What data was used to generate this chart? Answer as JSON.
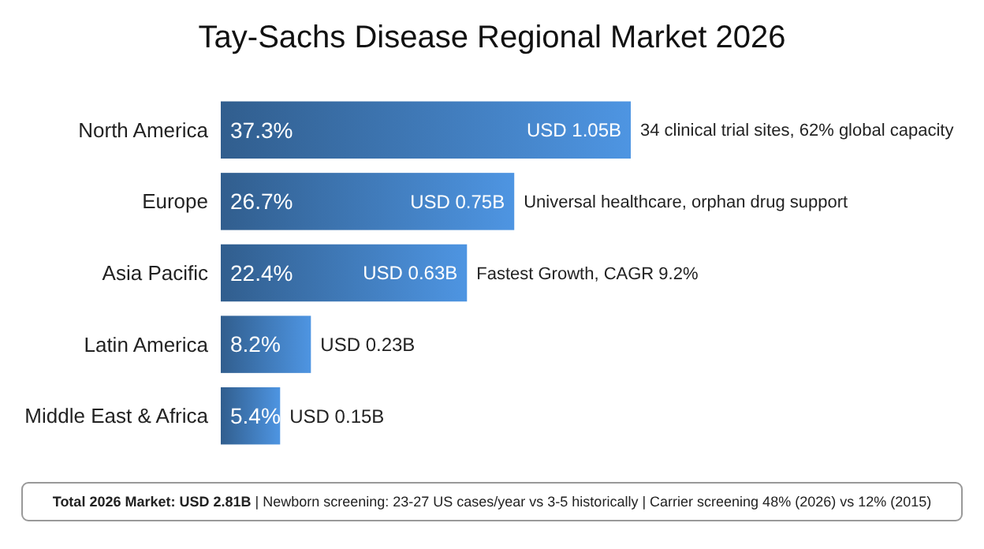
{
  "chart_data": {
    "type": "bar",
    "orientation": "horizontal",
    "title": "Tay-Sachs Disease Regional Market 2026",
    "categories": [
      "North America",
      "Europe",
      "Asia Pacific",
      "Latin America",
      "Middle East & Africa"
    ],
    "values": [
      37.3,
      26.7,
      22.4,
      8.2,
      5.4
    ],
    "value_labels": [
      "37.3%",
      "26.7%",
      "22.4%",
      "8.2%",
      "5.4%"
    ],
    "color": "#3d74b0",
    "annotations": [
      {
        "text": "USD 1.05B",
        "x": 37.3,
        "y": "North America"
      },
      {
        "text": "34 clinical trial sites, 62% global capacity",
        "x": 37.3,
        "y": "North America"
      },
      {
        "text": "USD 0.75B",
        "x": 26.7,
        "y": "Europe"
      },
      {
        "text": "Universal healthcare, orphan drug support",
        "x": 26.7,
        "y": "Europe"
      },
      {
        "text": "USD 0.63B",
        "x": 22.4,
        "y": "Asia Pacific"
      },
      {
        "text": "Fastest Growth, CAGR 9.2%",
        "x": 22.4,
        "y": "Asia Pacific"
      },
      {
        "text": "USD 0.23B",
        "x": 8.2,
        "y": "Latin America"
      },
      {
        "text": "USD 0.15B",
        "x": 5.4,
        "y": "Middle East & Africa"
      },
      "Total 2026 Market: USD 2.81B | Newborn screening: 23-27 US cases/year vs 3-5 historically | Carrier screening 48% (2026) vs 12% (2015)"
    ]
  }
}
